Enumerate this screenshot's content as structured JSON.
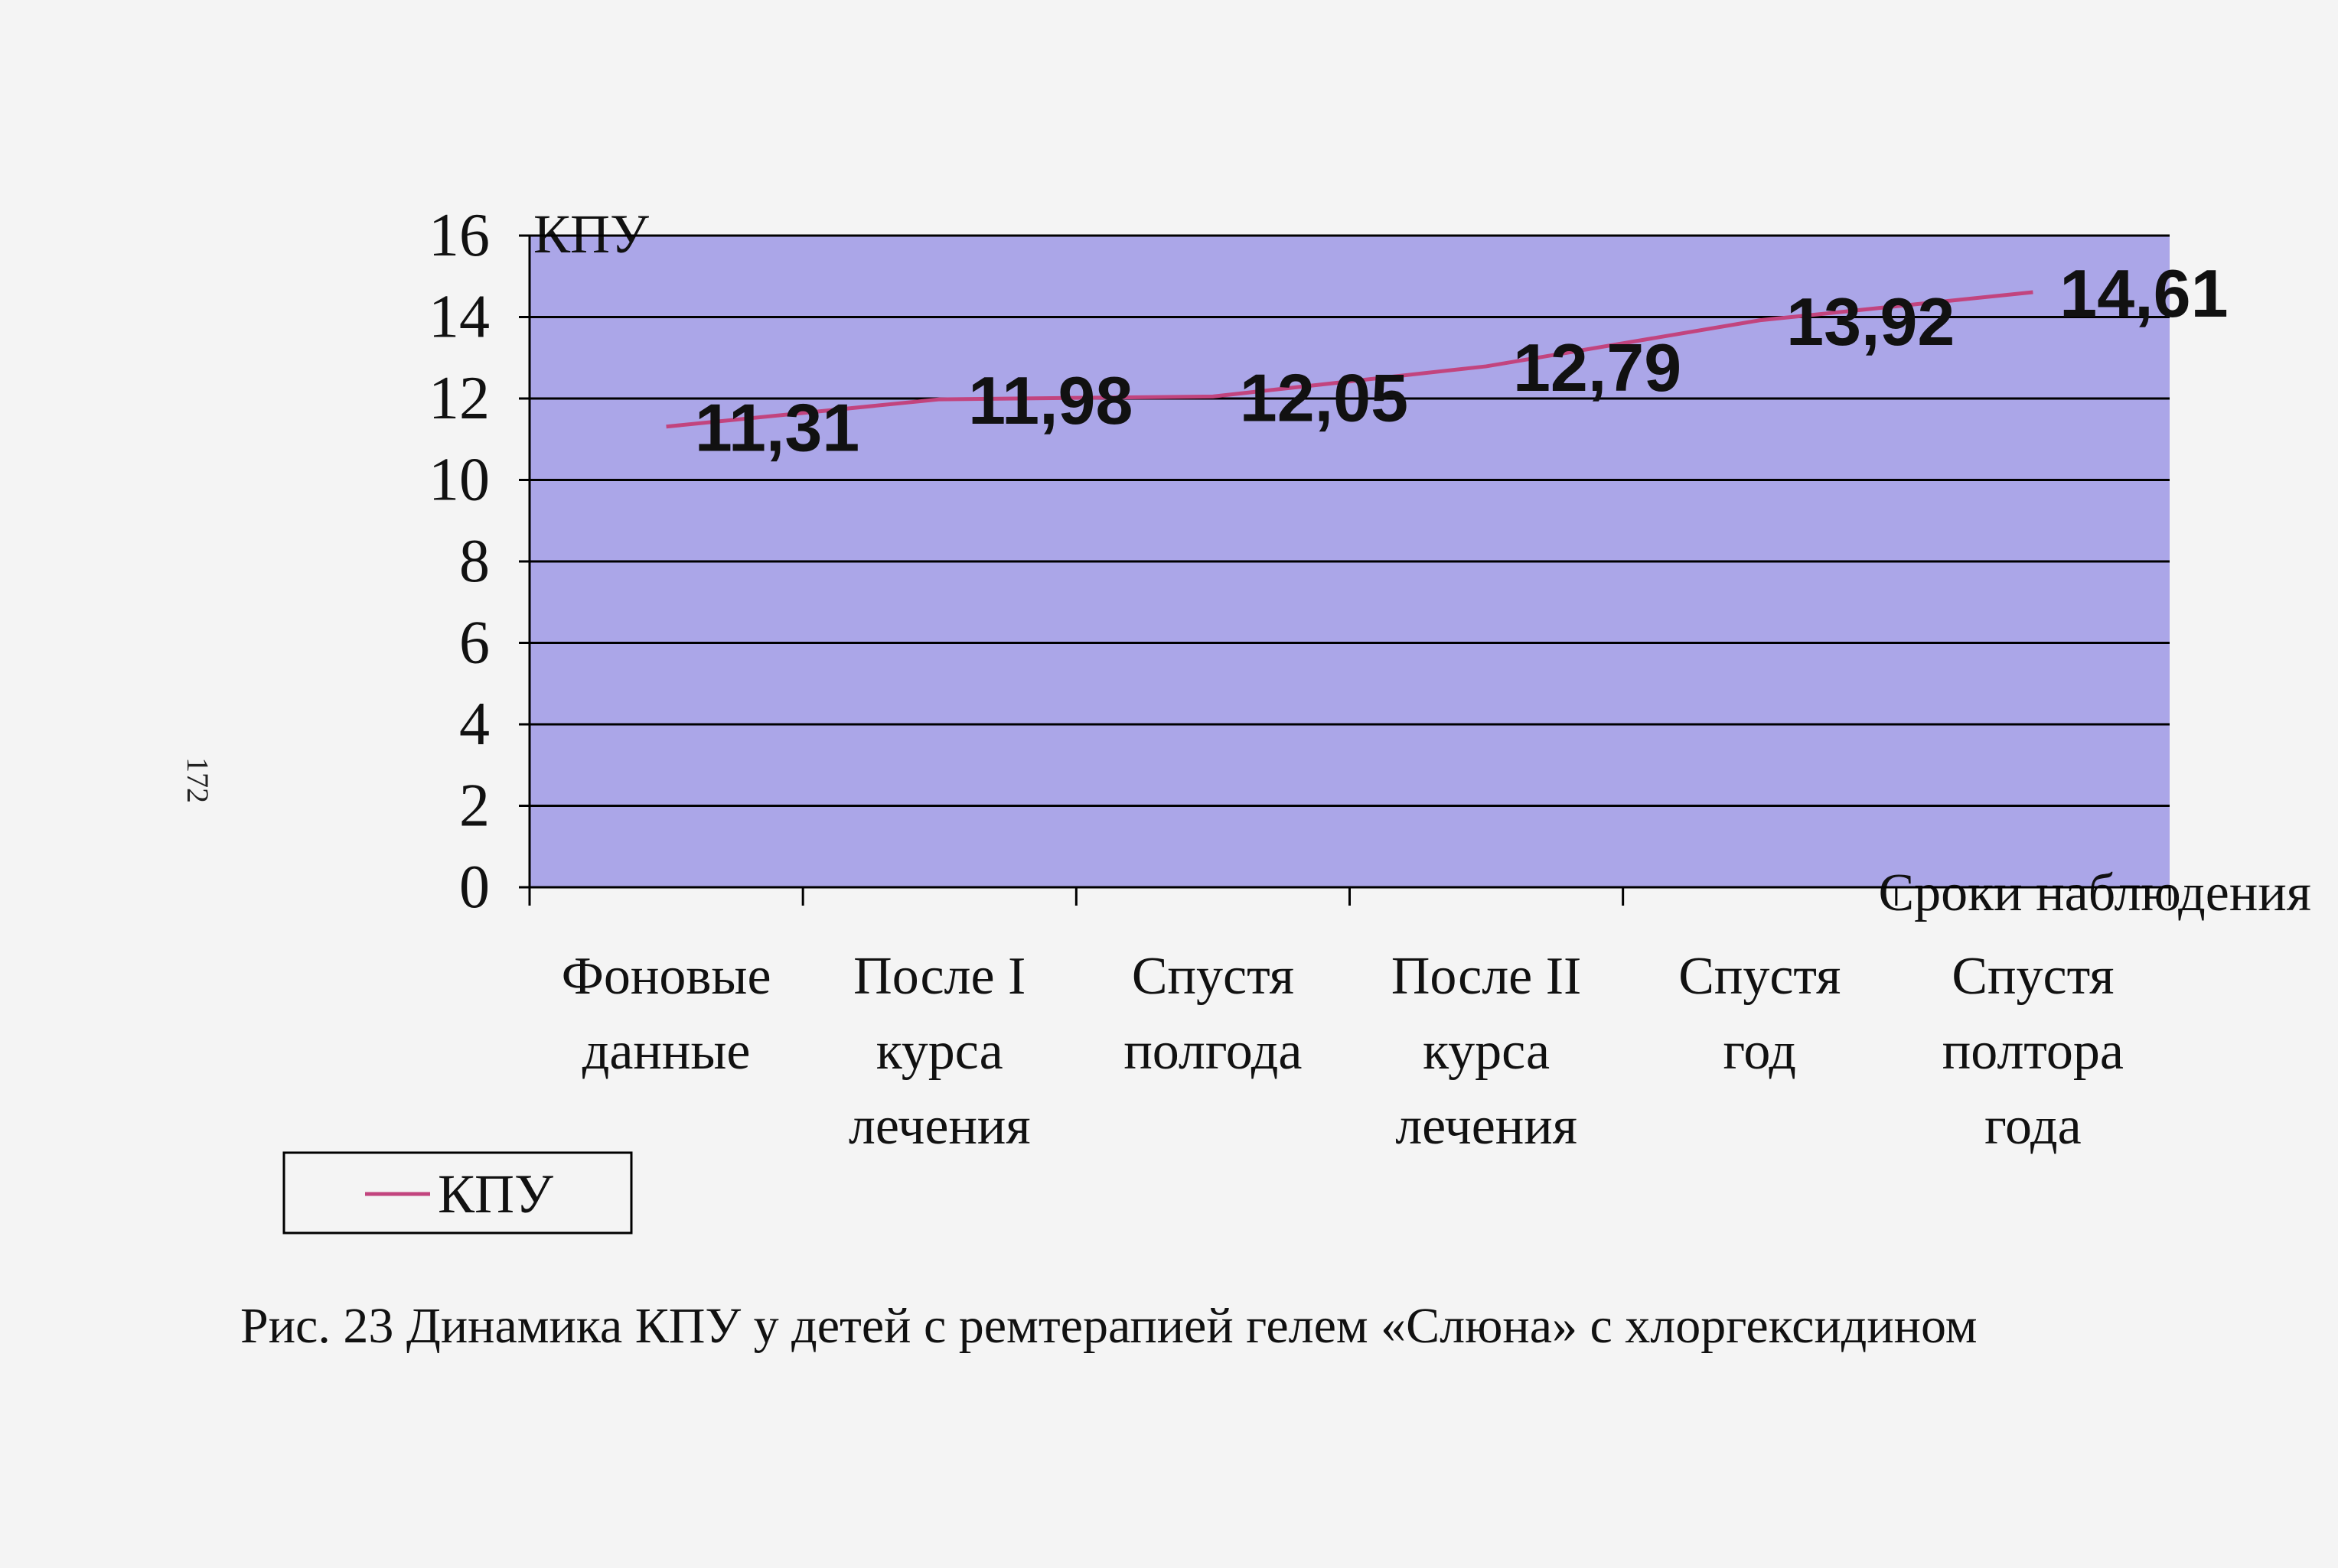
{
  "chart_data": {
    "type": "line",
    "y_label": "КПУ",
    "x_label": "Сроки наблюдения",
    "caption": "Рис. 23 Динамика КПУ у детей с ремтерапией гелем «Слюна» с хлоргексидином",
    "page_number": "172",
    "categories": [
      "Фоновые\nданные",
      "После I\nкурса\nлечения",
      "Спустя\nполгода",
      "После II\nкурса\nлечения",
      "Спустя\nгод",
      "Спустя\nполтора\nгода"
    ],
    "series": [
      {
        "name": "КПУ",
        "color": "#c2447e",
        "values": [
          11.31,
          11.98,
          12.05,
          12.79,
          13.92,
          14.61
        ],
        "value_labels": [
          "11,31",
          "11,98",
          "12,05",
          "12,79",
          "13,92",
          "14,61"
        ]
      }
    ],
    "ylim": [
      0,
      16
    ],
    "yticks": [
      0,
      2,
      4,
      6,
      8,
      10,
      12,
      14,
      16
    ],
    "grid": true,
    "plot_background": "#aba6e8",
    "legend": "bottom-left"
  }
}
